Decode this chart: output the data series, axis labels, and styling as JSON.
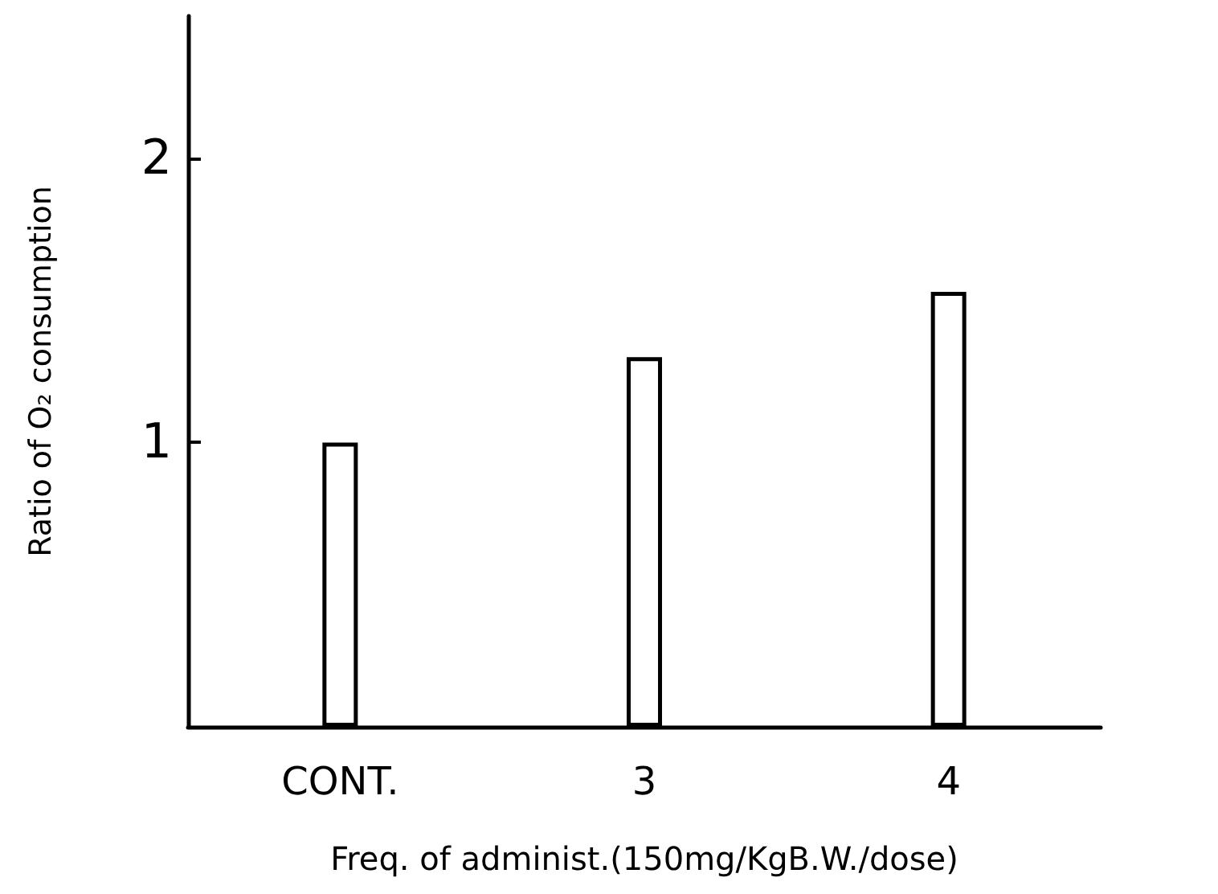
{
  "chart_data": {
    "type": "bar",
    "xlabel": "Freq. of administ.(150mg/KgB.W./dose)",
    "ylabel": "Ratio of O₂ consumption",
    "categories": [
      "CONT.",
      "3",
      "4"
    ],
    "values": [
      1.0,
      1.3,
      1.53
    ],
    "color": "#ffffff",
    "ylim": [
      0,
      2.5
    ],
    "yticks": [
      1,
      2
    ],
    "grid": false
  }
}
